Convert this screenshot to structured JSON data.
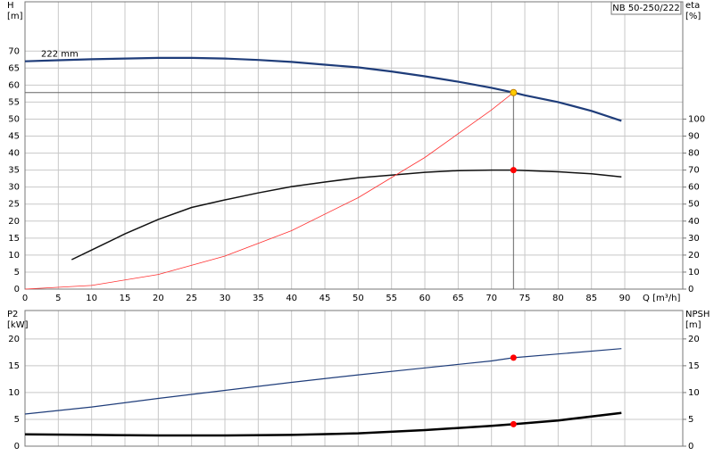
{
  "chart_data": [
    {
      "type": "line",
      "model_label": "NB 50-250/222",
      "ylabel": "H",
      "yunit": "[m]",
      "y2label": "eta",
      "y2unit": "[%]",
      "xlabel": "Q [m³/h]",
      "xlim": [
        0,
        98.7
      ],
      "xticks": [
        0,
        5,
        10,
        15,
        20,
        25,
        30,
        35,
        40,
        45,
        50,
        55,
        60,
        65,
        70,
        75,
        80,
        85,
        90
      ],
      "ylim": [
        0,
        84.5
      ],
      "yticks": [
        0,
        5,
        10,
        15,
        20,
        25,
        30,
        35,
        40,
        45,
        50,
        55,
        60,
        65,
        70
      ],
      "y2lim": [
        0,
        169
      ],
      "y2ticks": [
        0,
        10,
        20,
        30,
        40,
        50,
        60,
        70,
        80,
        90,
        100
      ],
      "grid": true,
      "series": [
        {
          "name": "222 mm",
          "color": "#1f3d7a",
          "width": 2.2,
          "axis": "y",
          "x": [
            0,
            5,
            10,
            15,
            20,
            25,
            30,
            35,
            40,
            45,
            50,
            55,
            60,
            65,
            70,
            73.3,
            75,
            80,
            85,
            89.5
          ],
          "values": [
            67,
            67.3,
            67.6,
            67.8,
            68,
            68,
            67.8,
            67.4,
            66.8,
            66,
            65.2,
            64,
            62.6,
            61,
            59.2,
            57.8,
            57,
            55,
            52.4,
            49.5
          ]
        },
        {
          "color": "#111111",
          "width": 1.5,
          "axis": "y2",
          "x": [
            7,
            10,
            15,
            20,
            25,
            30,
            35,
            40,
            45,
            50,
            55,
            60,
            65,
            70,
            73.3,
            80,
            85,
            89.5
          ],
          "values": [
            17.3,
            23,
            32.5,
            41,
            48,
            52.5,
            56.6,
            60.3,
            63,
            65.5,
            67,
            68.7,
            69.7,
            70,
            70,
            69,
            67.8,
            66
          ]
        },
        {
          "color": "#ff3030",
          "width": 0.8,
          "axis": "y",
          "x": [
            0,
            10,
            20,
            30,
            40,
            50,
            60,
            70,
            73.3
          ],
          "values": [
            0,
            1.08,
            4.3,
            9.7,
            17.2,
            26.9,
            38.7,
            52.7,
            57.8
          ]
        }
      ],
      "operating_point": {
        "x": 73.3,
        "y": 57.8
      },
      "points": [
        {
          "x": 73.3,
          "y": 57.8,
          "axis": "y",
          "color": "#ffcc00"
        },
        {
          "x": 73.3,
          "y": 70,
          "axis": "y2",
          "color": "#ff0000"
        }
      ]
    },
    {
      "type": "line",
      "ylabel": "P2",
      "yunit": "[kW]",
      "y2label": "NPSH",
      "y2unit": "[m]",
      "xlim": [
        0,
        98.7
      ],
      "xticks": [
        0,
        5,
        10,
        15,
        20,
        25,
        30,
        35,
        40,
        45,
        50,
        55,
        60,
        65,
        70,
        75,
        80,
        85,
        90
      ],
      "ylim": [
        0,
        25.3
      ],
      "yticks": [
        0,
        5,
        10,
        15,
        20
      ],
      "y2lim": [
        0,
        25.3
      ],
      "y2ticks": [
        0,
        5,
        10,
        15,
        20
      ],
      "grid": true,
      "series": [
        {
          "color": "#1f3d7a",
          "width": 1.2,
          "axis": "y",
          "x": [
            0,
            10,
            20,
            30,
            40,
            50,
            60,
            70,
            73.3,
            80,
            89.5
          ],
          "values": [
            6,
            7.3,
            8.9,
            10.4,
            11.9,
            13.3,
            14.6,
            15.9,
            16.5,
            17.2,
            18.2
          ]
        },
        {
          "color": "#000000",
          "width": 2.5,
          "axis": "y2",
          "x": [
            0,
            10,
            20,
            30,
            40,
            50,
            60,
            70,
            73.3,
            80,
            89.5
          ],
          "values": [
            2.2,
            2.1,
            2.0,
            2.0,
            2.1,
            2.4,
            3.0,
            3.8,
            4.1,
            4.8,
            6.2
          ]
        }
      ],
      "points": [
        {
          "x": 73.3,
          "y": 16.5,
          "axis": "y",
          "color": "#ff0000"
        },
        {
          "x": 73.3,
          "y": 4.1,
          "axis": "y2",
          "color": "#ff0000"
        }
      ]
    }
  ]
}
